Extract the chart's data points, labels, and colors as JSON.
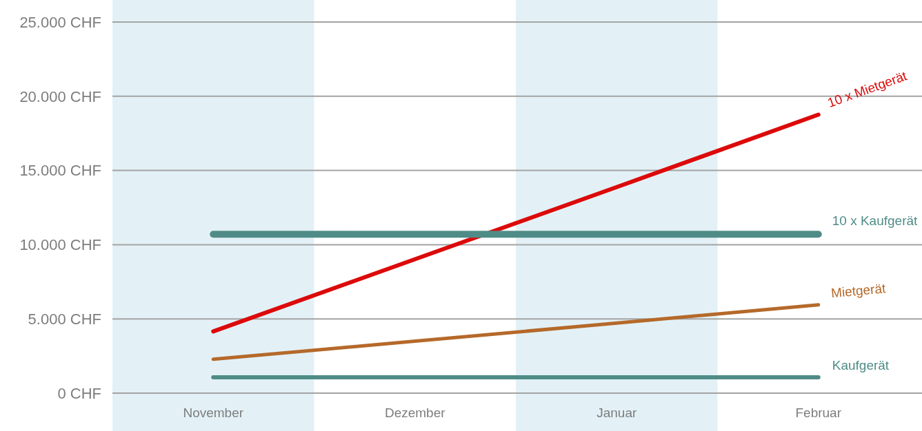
{
  "chart_data": {
    "type": "line",
    "categories": [
      "November",
      "Dezember",
      "Januar",
      "Februar"
    ],
    "ylim": [
      0,
      25000
    ],
    "yticks": [
      {
        "value": 0,
        "label": "0 CHF"
      },
      {
        "value": 5000,
        "label": "5.000 CHF"
      },
      {
        "value": 10000,
        "label": "10.000 CHF"
      },
      {
        "value": 15000,
        "label": "15.000 CHF"
      },
      {
        "value": 20000,
        "label": "20.000 CHF"
      },
      {
        "value": 25000,
        "label": "25.000 CHF"
      }
    ],
    "grid": "y",
    "bands": [
      {
        "axis": "x",
        "from": "November",
        "to": "November",
        "color": "#e3f1f6"
      },
      {
        "axis": "x",
        "from": "Januar",
        "to": "Januar",
        "color": "#e3f1f6"
      }
    ],
    "series": [
      {
        "name": "10 x Mietgerät",
        "color": "#dc0a0a",
        "values": [
          4160,
          9020,
          13880,
          18760
        ]
      },
      {
        "name": "10 x Kaufgerät",
        "color": "#4f8c87",
        "values": [
          10700,
          10700,
          10700,
          10700
        ]
      },
      {
        "name": "Mietgerät",
        "color": "#b5692a",
        "values": [
          2280,
          3500,
          4720,
          5950
        ]
      },
      {
        "name": "Kaufgerät",
        "color": "#4f8c87",
        "values": [
          1070,
          1070,
          1070,
          1070
        ]
      }
    ]
  }
}
